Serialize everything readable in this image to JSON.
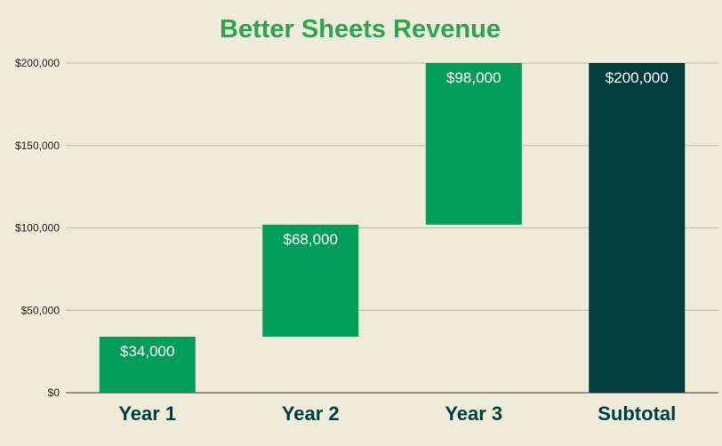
{
  "chart_data": {
    "type": "waterfall",
    "title": "Better Sheets Revenue",
    "xlabel": "",
    "ylabel": "",
    "categories": [
      "Year 1",
      "Year 2",
      "Year 3",
      "Subtotal"
    ],
    "values": [
      34000,
      68000,
      98000,
      200000
    ],
    "bar_kinds": [
      "increase",
      "increase",
      "increase",
      "total"
    ],
    "data_labels": [
      "$34,000",
      "$68,000",
      "$98,000",
      "$200,000"
    ],
    "ylim": [
      0,
      200000
    ],
    "y_ticks": [
      0,
      50000,
      100000,
      150000,
      200000
    ],
    "y_tick_labels": [
      "$0",
      "$50,000",
      "$100,000",
      "$150,000",
      "$200,000"
    ],
    "grid": true,
    "legend": "none",
    "colors": {
      "background": "#efebdb",
      "title": "#2fa352",
      "increase": "#029c5b",
      "total": "#013d3d",
      "x_labels": "#004040"
    }
  }
}
